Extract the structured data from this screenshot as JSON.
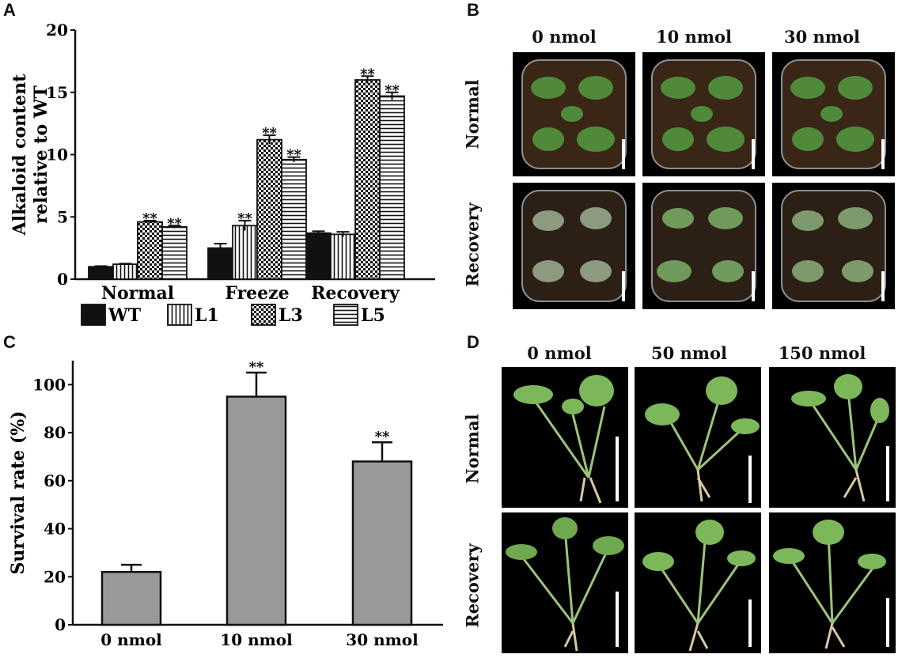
{
  "panels": {
    "a": "A",
    "b": "B",
    "c": "C",
    "d": "D"
  },
  "chart_data": [
    {
      "type": "bar",
      "panel": "A",
      "ylabel": "Alkaloid content relative to WT",
      "ylabel_lines": [
        "Alkaloid content",
        "relative to WT"
      ],
      "categories": [
        "Normal",
        "Freeze",
        "Recovery"
      ],
      "ylim": [
        0,
        20
      ],
      "yticks": [
        0,
        5,
        10,
        15,
        20
      ],
      "series": [
        {
          "name": "WT",
          "values": [
            1.0,
            2.5,
            3.7
          ],
          "errors": [
            0.05,
            0.35,
            0.15
          ],
          "pattern": "solid",
          "sig": [
            "",
            "",
            ""
          ]
        },
        {
          "name": "L1",
          "values": [
            1.2,
            4.3,
            3.6
          ],
          "errors": [
            0.05,
            0.4,
            0.2
          ],
          "pattern": "vlines",
          "sig": [
            "",
            "**",
            ""
          ]
        },
        {
          "name": "L3",
          "values": [
            4.6,
            11.2,
            16.0
          ],
          "errors": [
            0.1,
            0.35,
            0.3
          ],
          "pattern": "checker",
          "sig": [
            "**",
            "**",
            "**"
          ]
        },
        {
          "name": "L5",
          "values": [
            4.2,
            9.6,
            14.7
          ],
          "errors": [
            0.1,
            0.2,
            0.3
          ],
          "pattern": "hlines",
          "sig": [
            "**",
            "**",
            "**"
          ]
        }
      ],
      "legend_position": "bottom"
    },
    {
      "type": "bar",
      "panel": "C",
      "ylabel": "Survival rate (%)",
      "categories": [
        "0 nmol",
        "10 nmol",
        "30 nmol"
      ],
      "values": [
        22,
        95,
        68
      ],
      "errors": [
        3,
        10,
        8
      ],
      "sig": [
        "",
        "**",
        "**"
      ],
      "ylim": [
        0,
        110
      ],
      "yticks": [
        0,
        20,
        40,
        60,
        80,
        100
      ],
      "bar_color": "#999999"
    }
  ],
  "panel_b": {
    "columns": [
      "0 nmol",
      "10 nmol",
      "30 nmol"
    ],
    "rows": [
      "Normal",
      "Recovery"
    ]
  },
  "panel_d": {
    "columns": [
      "0 nmol",
      "50 nmol",
      "150 nmol"
    ],
    "rows": [
      "Normal",
      "Recovery"
    ]
  },
  "colors": {
    "photo_bg": "#000000",
    "leaf_healthy": "#4f8a3a",
    "leaf_damaged": "#8c9a80",
    "soil": "#3a2616",
    "bar_gray": "#999999"
  }
}
